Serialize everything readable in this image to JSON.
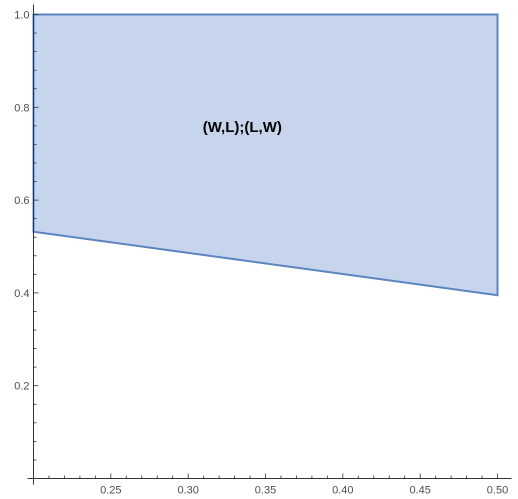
{
  "chart_data": {
    "type": "area",
    "xlim": [
      0.2,
      0.5
    ],
    "ylim": [
      0.0,
      1.0
    ],
    "x_ticks": [
      0.25,
      0.3,
      0.35,
      0.4,
      0.45,
      0.5
    ],
    "x_tick_labels": [
      "0.25",
      "0.30",
      "0.35",
      "0.40",
      "0.45",
      "0.50"
    ],
    "y_ticks": [
      0.2,
      0.4,
      0.6,
      0.8,
      1.0
    ],
    "y_tick_labels": [
      "0.2",
      "0.4",
      "0.6",
      "0.8",
      "1.0"
    ],
    "grid": false,
    "regions": [
      {
        "label": "(W,L);(L,W)",
        "label_at": {
          "x": 0.335,
          "y": 0.755
        },
        "vertices": [
          {
            "x": 0.2,
            "y": 1.0
          },
          {
            "x": 0.5,
            "y": 1.0
          },
          {
            "x": 0.5,
            "y": 0.395
          },
          {
            "x": 0.2,
            "y": 0.532
          }
        ],
        "fill_color": "#c6d5ec",
        "edge_color": "#5b84c1"
      }
    ]
  }
}
